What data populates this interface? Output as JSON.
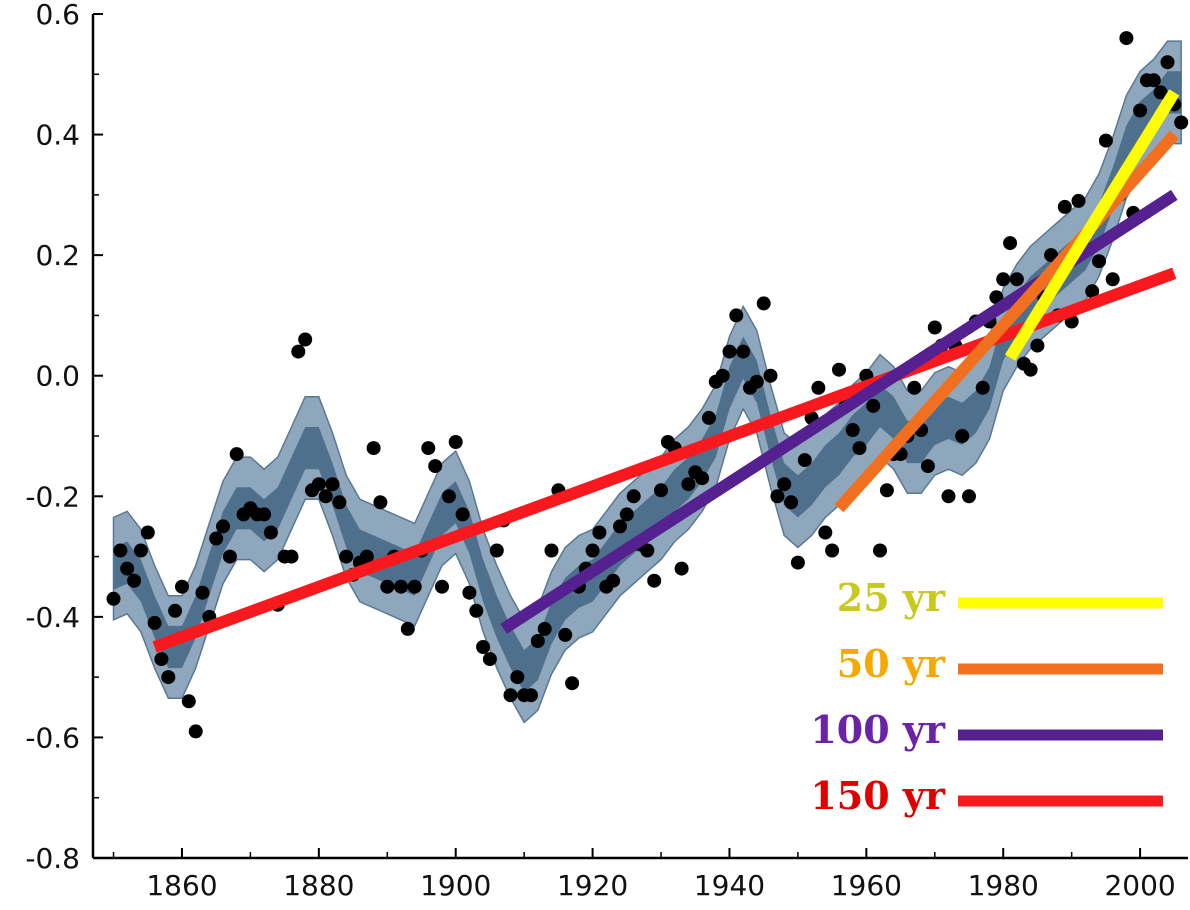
{
  "chart_data": {
    "type": "line",
    "xlim": [
      1847,
      2007
    ],
    "ylim": [
      -0.8,
      0.6
    ],
    "x_ticks": [
      1860,
      1880,
      1900,
      1920,
      1940,
      1960,
      1980,
      2000
    ],
    "x_tick_labels": [
      "1860",
      "1880",
      "1900",
      "1920",
      "1940",
      "1960",
      "1980",
      "2000"
    ],
    "y_ticks": [
      0.6,
      0.4,
      0.2,
      0.0,
      -0.2,
      -0.4,
      -0.6,
      -0.8
    ],
    "y_tick_labels": [
      "0.6",
      "0.4",
      "0.2",
      "0.0",
      "-0.2",
      "-0.4",
      "-0.6",
      "-0.8"
    ],
    "grid": false,
    "legend_position": "bottom-right",
    "annual_points": {
      "x": [
        1850,
        1851,
        1852,
        1853,
        1854,
        1855,
        1856,
        1857,
        1858,
        1859,
        1860,
        1861,
        1862,
        1863,
        1864,
        1865,
        1866,
        1867,
        1868,
        1869,
        1870,
        1871,
        1872,
        1873,
        1874,
        1875,
        1876,
        1877,
        1878,
        1879,
        1880,
        1881,
        1882,
        1883,
        1884,
        1885,
        1886,
        1887,
        1888,
        1889,
        1890,
        1891,
        1892,
        1893,
        1894,
        1895,
        1896,
        1897,
        1898,
        1899,
        1900,
        1901,
        1902,
        1903,
        1904,
        1905,
        1906,
        1907,
        1908,
        1909,
        1910,
        1911,
        1912,
        1913,
        1914,
        1915,
        1916,
        1917,
        1918,
        1919,
        1920,
        1921,
        1922,
        1923,
        1924,
        1925,
        1926,
        1927,
        1928,
        1929,
        1930,
        1931,
        1932,
        1933,
        1934,
        1935,
        1936,
        1937,
        1938,
        1939,
        1940,
        1941,
        1942,
        1943,
        1944,
        1945,
        1946,
        1947,
        1948,
        1949,
        1950,
        1951,
        1952,
        1953,
        1954,
        1955,
        1956,
        1957,
        1958,
        1959,
        1960,
        1961,
        1962,
        1963,
        1964,
        1965,
        1966,
        1967,
        1968,
        1969,
        1970,
        1971,
        1972,
        1973,
        1974,
        1975,
        1976,
        1977,
        1978,
        1979,
        1980,
        1981,
        1982,
        1983,
        1984,
        1985,
        1986,
        1987,
        1988,
        1989,
        1990,
        1991,
        1992,
        1993,
        1994,
        1995,
        1996,
        1997,
        1998,
        1999,
        2000,
        2001,
        2002,
        2003,
        2004,
        2005,
        2006
      ],
      "y": [
        -0.37,
        -0.29,
        -0.32,
        -0.34,
        -0.29,
        -0.26,
        -0.41,
        -0.47,
        -0.5,
        -0.39,
        -0.35,
        -0.54,
        -0.59,
        -0.36,
        -0.4,
        -0.27,
        -0.25,
        -0.3,
        -0.13,
        -0.23,
        -0.22,
        -0.23,
        -0.23,
        -0.26,
        -0.38,
        -0.3,
        -0.3,
        0.04,
        0.06,
        -0.19,
        -0.18,
        -0.2,
        -0.18,
        -0.21,
        -0.3,
        -0.33,
        -0.31,
        -0.3,
        -0.12,
        -0.21,
        -0.35,
        -0.3,
        -0.35,
        -0.42,
        -0.35,
        -0.29,
        -0.12,
        -0.15,
        -0.35,
        -0.2,
        -0.11,
        -0.23,
        -0.36,
        -0.39,
        -0.45,
        -0.47,
        -0.29,
        -0.24,
        -0.53,
        -0.5,
        -0.53,
        -0.53,
        -0.44,
        -0.42,
        -0.29,
        -0.19,
        -0.43,
        -0.51,
        -0.35,
        -0.32,
        -0.29,
        -0.26,
        -0.35,
        -0.34,
        -0.25,
        -0.23,
        -0.2,
        -0.28,
        -0.29,
        -0.34,
        -0.19,
        -0.11,
        -0.12,
        -0.32,
        -0.18,
        -0.16,
        -0.17,
        -0.07,
        -0.01,
        0.0,
        0.04,
        0.1,
        0.04,
        -0.02,
        -0.01,
        0.12,
        0.0,
        -0.2,
        -0.18,
        -0.21,
        -0.31,
        -0.14,
        -0.07,
        -0.02,
        -0.26,
        -0.29,
        0.01,
        -0.05,
        -0.09,
        -0.12,
        0.0,
        -0.05,
        -0.29,
        -0.19,
        -0.13,
        -0.13,
        -0.1,
        -0.02,
        -0.09,
        -0.15,
        0.08,
        0.05,
        -0.2,
        0.05,
        -0.1,
        -0.2,
        0.09,
        -0.02,
        0.09,
        0.13,
        0.16,
        0.22,
        0.16,
        0.02,
        0.01,
        0.05,
        0.13,
        0.2,
        0.1,
        0.28,
        0.09,
        0.29,
        0.21,
        0.14,
        0.19,
        0.39,
        0.16,
        0.3,
        0.56,
        0.27,
        0.44,
        0.49,
        0.49,
        0.47,
        0.52,
        0.45,
        0.42
      ]
    },
    "smoothed": {
      "x": [
        1850,
        1852,
        1854,
        1856,
        1858,
        1860,
        1862,
        1864,
        1866,
        1868,
        1870,
        1872,
        1874,
        1876,
        1878,
        1880,
        1882,
        1884,
        1886,
        1888,
        1890,
        1892,
        1894,
        1896,
        1898,
        1900,
        1902,
        1904,
        1906,
        1908,
        1910,
        1912,
        1914,
        1916,
        1918,
        1920,
        1922,
        1924,
        1926,
        1928,
        1930,
        1932,
        1934,
        1936,
        1938,
        1940,
        1942,
        1944,
        1946,
        1948,
        1950,
        1952,
        1954,
        1956,
        1958,
        1960,
        1962,
        1964,
        1966,
        1968,
        1970,
        1972,
        1974,
        1976,
        1978,
        1980,
        1982,
        1984,
        1986,
        1988,
        1990,
        1992,
        1994,
        1996,
        1998,
        2000,
        2002,
        2004,
        2006
      ],
      "y": [
        -0.32,
        -0.31,
        -0.34,
        -0.4,
        -0.45,
        -0.45,
        -0.4,
        -0.33,
        -0.26,
        -0.22,
        -0.22,
        -0.24,
        -0.22,
        -0.17,
        -0.12,
        -0.12,
        -0.18,
        -0.25,
        -0.29,
        -0.3,
        -0.31,
        -0.32,
        -0.33,
        -0.28,
        -0.23,
        -0.21,
        -0.26,
        -0.34,
        -0.4,
        -0.45,
        -0.49,
        -0.47,
        -0.41,
        -0.37,
        -0.35,
        -0.34,
        -0.31,
        -0.28,
        -0.26,
        -0.24,
        -0.22,
        -0.19,
        -0.17,
        -0.14,
        -0.1,
        -0.02,
        0.03,
        -0.01,
        -0.1,
        -0.18,
        -0.2,
        -0.18,
        -0.15,
        -0.13,
        -0.1,
        -0.08,
        -0.05,
        -0.07,
        -0.11,
        -0.11,
        -0.08,
        -0.07,
        -0.08,
        -0.06,
        -0.02,
        0.06,
        0.1,
        0.13,
        0.15,
        0.17,
        0.19,
        0.21,
        0.25,
        0.31,
        0.38,
        0.42,
        0.44,
        0.47,
        0.47
      ]
    },
    "band_inner_halfwidth": 0.035,
    "band_outer_halfwidth": 0.085,
    "series": [
      {
        "name": "25 yr",
        "x": [
          1981,
          2005
        ],
        "y": [
          0.03,
          0.47
        ]
      },
      {
        "name": "50 yr",
        "x": [
          1956,
          2005
        ],
        "y": [
          -0.22,
          0.4
        ]
      },
      {
        "name": "100 yr",
        "x": [
          1907,
          2005
        ],
        "y": [
          -0.42,
          0.3
        ]
      },
      {
        "name": "150 yr",
        "x": [
          1856,
          2005
        ],
        "y": [
          -0.45,
          0.17
        ]
      }
    ],
    "colors": {
      "points": "#000000",
      "band_outer": "#8fa7bd",
      "band_inner": "#4f708d",
      "band_edge": "#5a7895",
      "line_25": "#ffff00",
      "label_25": "#c8c81e",
      "line_50": "#f07020",
      "label_50": "#f5a800",
      "line_100": "#55208f",
      "label_100": "#6a22a8",
      "line_150": "#f8191e",
      "label_150": "#e00000",
      "axis": "#000000"
    }
  }
}
